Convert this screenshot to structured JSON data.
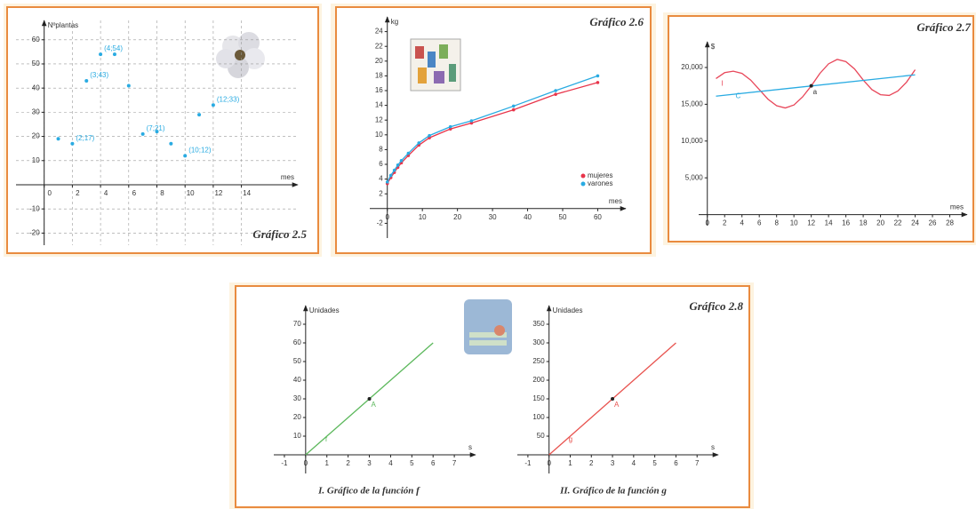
{
  "chart_data": [
    {
      "type": "scatter",
      "title": "Gráfico 2.5",
      "xlabel": "mes",
      "ylabel": "Nºplantas",
      "x": [
        1,
        2,
        3,
        4,
        5,
        6,
        7,
        8,
        9,
        10,
        11,
        12
      ],
      "values": [
        19,
        17,
        43,
        54,
        54,
        41,
        21,
        22,
        17,
        12,
        29,
        33
      ],
      "value_labels": [
        null,
        "(2;17)",
        "(3;43)",
        "(4;54)",
        null,
        null,
        "(7;21)",
        null,
        null,
        "(10;12)",
        null,
        "(12;33)"
      ],
      "color": "#29abe2",
      "xlim": [
        -2,
        18
      ],
      "ylim": [
        -25,
        68
      ],
      "xticks": [
        0,
        2,
        4,
        6,
        8,
        10,
        12,
        14
      ],
      "yticks": [
        -20,
        -10,
        10,
        20,
        30,
        40,
        50,
        60
      ],
      "grid": true
    },
    {
      "type": "line",
      "title": "Gráfico 2.6",
      "xlabel": "mes",
      "ylabel": "kg",
      "x": [
        0,
        1,
        2,
        3,
        4,
        6,
        9,
        12,
        18,
        24,
        36,
        48,
        60
      ],
      "series": [
        {
          "name": "mujeres",
          "color": "#e8344a",
          "values": [
            3.4,
            4.2,
            4.9,
            5.6,
            6.2,
            7.2,
            8.6,
            9.6,
            10.8,
            11.6,
            13.4,
            15.5,
            17.1
          ]
        },
        {
          "name": "varones",
          "color": "#29abe2",
          "values": [
            3.6,
            4.5,
            5.2,
            5.9,
            6.5,
            7.5,
            8.9,
            9.9,
            11.1,
            11.9,
            13.9,
            16.0,
            18.0
          ]
        }
      ],
      "markers": true,
      "legend": "lower right",
      "xlim": [
        -5,
        68
      ],
      "ylim": [
        -4,
        26
      ],
      "xticks": [
        0,
        10,
        20,
        30,
        40,
        50,
        60
      ],
      "yticks": [
        -2,
        2,
        4,
        6,
        8,
        10,
        12,
        14,
        16,
        18,
        20,
        22,
        24
      ],
      "grid": false
    },
    {
      "type": "line",
      "title": "Gráfico 2.7",
      "xlabel": "mes",
      "ylabel": "$",
      "series": [
        {
          "name": "I",
          "color": "#e8475a",
          "x": [
            1,
            2,
            3,
            4,
            5,
            6,
            7,
            8,
            9,
            10,
            11,
            12,
            13,
            14,
            15,
            16,
            17,
            18,
            19,
            20,
            21,
            22,
            23,
            24
          ],
          "values": [
            18500,
            19300,
            19500,
            19200,
            18300,
            17000,
            15700,
            14800,
            14500,
            14900,
            16000,
            17500,
            19200,
            20500,
            21100,
            20800,
            19800,
            18300,
            17000,
            16300,
            16200,
            16800,
            18000,
            19700
          ]
        },
        {
          "name": "C",
          "color": "#29abe2",
          "x": [
            1,
            24
          ],
          "values": [
            16100,
            19000
          ]
        }
      ],
      "points": [
        {
          "label": "a",
          "x": 12,
          "y": 17500
        }
      ],
      "xlim": [
        -1,
        30
      ],
      "ylim": [
        -1500,
        23500
      ],
      "xticks": [
        0,
        2,
        4,
        6,
        8,
        10,
        12,
        14,
        16,
        18,
        20,
        22,
        24,
        26,
        28
      ],
      "yticks": [
        {
          "value": 5000,
          "label": "5,000"
        },
        {
          "value": 10000,
          "label": "10,000"
        },
        {
          "value": 15000,
          "label": "15,000"
        },
        {
          "value": 20000,
          "label": "20,000"
        }
      ],
      "grid": false
    },
    {
      "type": "line",
      "caption": "I. Gráfico de la función f",
      "xlabel": "s",
      "ylabel": "Unidades",
      "series": [
        {
          "name": "f",
          "color": "#5cb85c",
          "x": [
            0,
            6
          ],
          "values": [
            0,
            60
          ]
        }
      ],
      "points": [
        {
          "label": "A",
          "x": 3,
          "y": 30
        }
      ],
      "xlim": [
        -1.5,
        8
      ],
      "ylim": [
        -10,
        80
      ],
      "xticks": [
        -1,
        0,
        1,
        2,
        3,
        4,
        5,
        6,
        7
      ],
      "yticks": [
        10,
        20,
        30,
        40,
        50,
        60,
        70
      ],
      "grid": false
    },
    {
      "type": "line",
      "title": "Gráfico 2.8",
      "caption": "II. Gráfico de la función g",
      "xlabel": "s",
      "ylabel": "Unidades",
      "series": [
        {
          "name": "g",
          "color": "#e8534f",
          "x": [
            0,
            6
          ],
          "values": [
            0,
            300
          ]
        }
      ],
      "points": [
        {
          "label": "A",
          "x": 3,
          "y": 150
        }
      ],
      "xlim": [
        -1.5,
        8
      ],
      "ylim": [
        -50,
        400
      ],
      "xticks": [
        -1,
        0,
        1,
        2,
        3,
        4,
        5,
        6,
        7
      ],
      "yticks": [
        50,
        100,
        150,
        200,
        250,
        300,
        350
      ],
      "grid": false
    }
  ]
}
